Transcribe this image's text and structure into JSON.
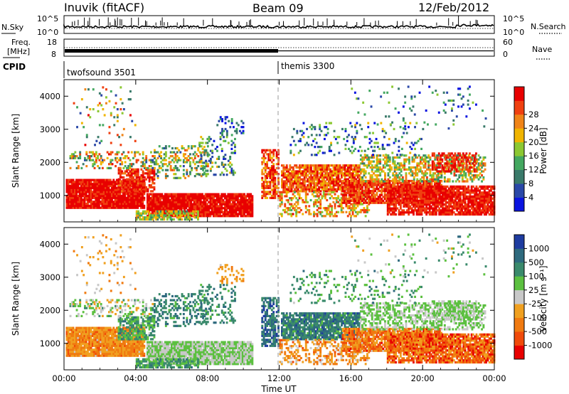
{
  "header": {
    "station": "Inuvik (fitACF)",
    "beam": "Beam 09",
    "date": "12/Feb/2012"
  },
  "panels": {
    "nsky": {
      "label": "N.Sky",
      "ticks": [
        "10^5",
        "10^0"
      ],
      "right_label": "N.Search",
      "right_ticks": [
        "10^5",
        "10^0"
      ]
    },
    "freq": {
      "label_line1": "Freq.",
      "label_line2": "[MHz]",
      "ticks": [
        "18",
        "8"
      ],
      "right_label": "Nave",
      "right_ticks": [
        "60",
        "0"
      ]
    },
    "cpid": {
      "label": "CPID",
      "programs": [
        "twofsound 3501",
        "themis 3300"
      ]
    }
  },
  "chart_data": [
    {
      "type": "heatmap",
      "quantity": "power",
      "ylabel": "Slant Range [km]",
      "xlabel": "Time UT",
      "yticks": [
        "1000",
        "2000",
        "3000",
        "4000"
      ],
      "ylim": [
        200,
        4500
      ],
      "xticks": [
        "00:00",
        "04:00",
        "08:00",
        "12:00",
        "16:00",
        "20:00",
        "00:00"
      ],
      "colorbar": {
        "label": "Power [dB]",
        "ticks": [
          "4",
          "8",
          "12",
          "16",
          "20",
          "24",
          "28"
        ],
        "colors": [
          "#0a14e0",
          "#2a48a8",
          "#3a7a6a",
          "#44a860",
          "#8cc832",
          "#f0b400",
          "#f08418",
          "#f04010",
          "#e80000"
        ]
      }
    },
    {
      "type": "heatmap",
      "quantity": "velocity",
      "ylabel": "Slant Range [km]",
      "xlabel": "Time UT",
      "yticks": [
        "1000",
        "2000",
        "3000",
        "4000"
      ],
      "ylim": [
        200,
        4500
      ],
      "xticks": [
        "00:00",
        "04:00",
        "08:00",
        "12:00",
        "16:00",
        "20:00",
        "00:00"
      ],
      "colorbar": {
        "label": "Velocity [m s⁻¹]",
        "ticks": [
          "1000",
          "500",
          "100",
          "25",
          "-25",
          "-100",
          "-500",
          "-1000"
        ],
        "colors": [
          "#1e3ca0",
          "#2e6a7e",
          "#3a8a6c",
          "#5cc040",
          "#c8c8c8",
          "#f0a020",
          "#f07a10",
          "#f04a0a",
          "#e80000"
        ]
      }
    }
  ]
}
